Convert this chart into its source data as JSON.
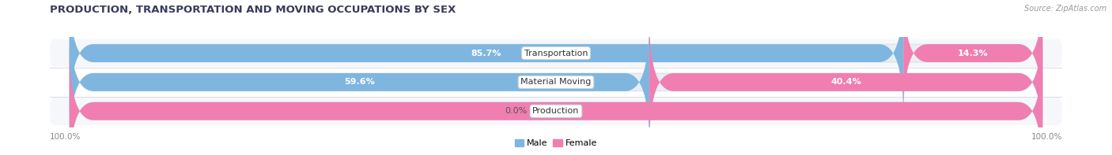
{
  "title": "PRODUCTION, TRANSPORTATION AND MOVING OCCUPATIONS BY SEX",
  "source_text": "Source: ZipAtlas.com",
  "categories": [
    "Transportation",
    "Material Moving",
    "Production"
  ],
  "male_values": [
    85.7,
    59.6,
    0.0
  ],
  "female_values": [
    14.3,
    40.4,
    100.0
  ],
  "male_color": "#7EB6E0",
  "female_color": "#F07EB0",
  "bg_color": "#FFFFFF",
  "bar_bg_color": "#E8EEF4",
  "row_bg_even": "#F5F7FA",
  "row_bg_odd": "#FFFFFF",
  "title_fontsize": 9.5,
  "label_fontsize": 8.0,
  "value_fontsize": 8.0,
  "tick_fontsize": 7.5,
  "bar_height": 0.62,
  "x_left_label": "100.0%",
  "x_right_label": "100.0%",
  "legend_male": "Male",
  "legend_female": "Female"
}
